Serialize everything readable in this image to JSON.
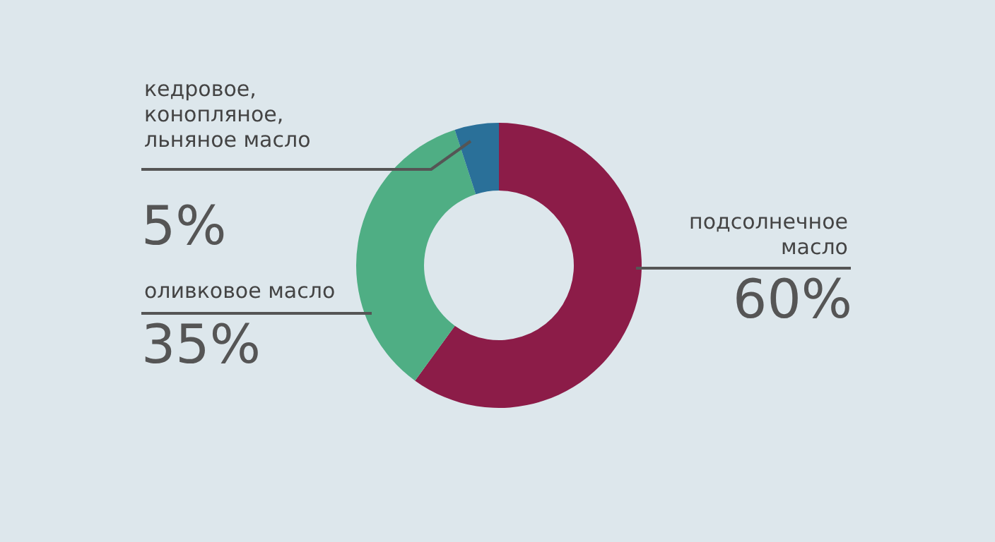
{
  "chart_data": {
    "type": "donut",
    "categories": [
      "подсолнечное\nмасло",
      "оливковое масло",
      "кедровое,\nконопляное,\nльняное масло"
    ],
    "values": [
      60,
      35,
      5
    ],
    "colors": [
      "#8c1c48",
      "#4fae84",
      "#2a7099"
    ],
    "value_labels": [
      "60%",
      "35%",
      "5%"
    ]
  }
}
